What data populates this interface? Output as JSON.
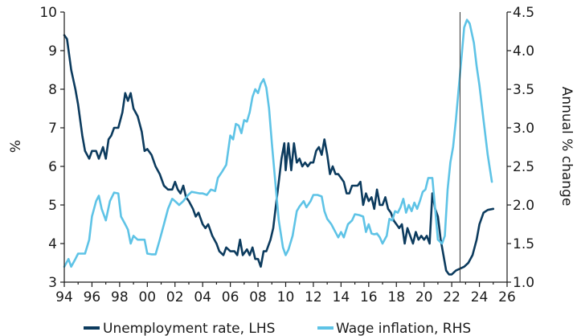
{
  "chart_data": {
    "type": "line",
    "title": "",
    "xlabel": "",
    "ylabel": "%",
    "ylabel_right": "Annual % change",
    "xlim": [
      1994,
      2026
    ],
    "ylim": [
      3,
      10
    ],
    "ylim_right": [
      1.0,
      4.5
    ],
    "x_ticks": [
      1994,
      1996,
      1998,
      2000,
      2002,
      2004,
      2006,
      2008,
      2010,
      2012,
      2014,
      2016,
      2018,
      2020,
      2022,
      2024,
      2026
    ],
    "x_tick_labels": [
      "94",
      "96",
      "98",
      "00",
      "02",
      "04",
      "06",
      "08",
      "10",
      "12",
      "14",
      "16",
      "18",
      "20",
      "22",
      "24",
      "26"
    ],
    "y_ticks": [
      3,
      4,
      5,
      6,
      7,
      8,
      9,
      10
    ],
    "y_tick_labels": [
      "3",
      "4",
      "5",
      "6",
      "7",
      "8",
      "9",
      "10"
    ],
    "y_ticks_right": [
      1.0,
      1.5,
      2.0,
      2.5,
      3.0,
      3.5,
      4.0,
      4.5
    ],
    "y_tick_labels_right": [
      "1.0",
      "1.5",
      "2.0",
      "2.5",
      "3.0",
      "3.5",
      "4.0",
      "4.5"
    ],
    "vline_x": 2022.6,
    "grid": false,
    "legend_position": "bottom",
    "series": [
      {
        "name": "Unemployment rate, LHS",
        "axis": "left",
        "color": "#0c3b5e",
        "points": [
          [
            1994.0,
            9.4
          ],
          [
            1994.2,
            9.3
          ],
          [
            1994.5,
            8.5
          ],
          [
            1994.8,
            8.0
          ],
          [
            1995.0,
            7.6
          ],
          [
            1995.3,
            6.8
          ],
          [
            1995.5,
            6.4
          ],
          [
            1995.8,
            6.2
          ],
          [
            1996.0,
            6.4
          ],
          [
            1996.3,
            6.4
          ],
          [
            1996.5,
            6.2
          ],
          [
            1996.8,
            6.5
          ],
          [
            1997.0,
            6.2
          ],
          [
            1997.2,
            6.7
          ],
          [
            1997.4,
            6.8
          ],
          [
            1997.6,
            7.0
          ],
          [
            1997.9,
            7.0
          ],
          [
            1998.2,
            7.4
          ],
          [
            1998.4,
            7.9
          ],
          [
            1998.6,
            7.7
          ],
          [
            1998.8,
            7.9
          ],
          [
            1999.0,
            7.5
          ],
          [
            1999.3,
            7.3
          ],
          [
            1999.6,
            6.9
          ],
          [
            1999.8,
            6.4
          ],
          [
            2000.0,
            6.45
          ],
          [
            2000.3,
            6.3
          ],
          [
            2000.6,
            6.0
          ],
          [
            2000.9,
            5.8
          ],
          [
            2001.2,
            5.5
          ],
          [
            2001.5,
            5.4
          ],
          [
            2001.8,
            5.4
          ],
          [
            2002.0,
            5.6
          ],
          [
            2002.2,
            5.4
          ],
          [
            2002.4,
            5.3
          ],
          [
            2002.6,
            5.5
          ],
          [
            2002.8,
            5.2
          ],
          [
            2003.0,
            5.1
          ],
          [
            2003.3,
            4.9
          ],
          [
            2003.5,
            4.7
          ],
          [
            2003.7,
            4.8
          ],
          [
            2004.0,
            4.5
          ],
          [
            2004.2,
            4.4
          ],
          [
            2004.4,
            4.5
          ],
          [
            2004.7,
            4.2
          ],
          [
            2005.0,
            4.0
          ],
          [
            2005.2,
            3.8
          ],
          [
            2005.5,
            3.7
          ],
          [
            2005.7,
            3.9
          ],
          [
            2006.0,
            3.8
          ],
          [
            2006.3,
            3.8
          ],
          [
            2006.5,
            3.7
          ],
          [
            2006.7,
            4.1
          ],
          [
            2006.9,
            3.7
          ],
          [
            2007.2,
            3.85
          ],
          [
            2007.4,
            3.7
          ],
          [
            2007.6,
            3.9
          ],
          [
            2007.8,
            3.6
          ],
          [
            2008.0,
            3.6
          ],
          [
            2008.2,
            3.4
          ],
          [
            2008.4,
            3.8
          ],
          [
            2008.6,
            3.8
          ],
          [
            2008.9,
            4.1
          ],
          [
            2009.1,
            4.4
          ],
          [
            2009.3,
            5.0
          ],
          [
            2009.5,
            5.6
          ],
          [
            2009.7,
            6.2
          ],
          [
            2009.9,
            6.6
          ],
          [
            2010.0,
            5.9
          ],
          [
            2010.2,
            6.6
          ],
          [
            2010.4,
            5.9
          ],
          [
            2010.6,
            6.6
          ],
          [
            2010.8,
            6.1
          ],
          [
            2011.0,
            6.2
          ],
          [
            2011.2,
            6.0
          ],
          [
            2011.4,
            6.1
          ],
          [
            2011.6,
            6.0
          ],
          [
            2011.8,
            6.1
          ],
          [
            2012.0,
            6.1
          ],
          [
            2012.2,
            6.4
          ],
          [
            2012.4,
            6.5
          ],
          [
            2012.6,
            6.3
          ],
          [
            2012.8,
            6.7
          ],
          [
            2013.0,
            6.3
          ],
          [
            2013.2,
            5.8
          ],
          [
            2013.4,
            6.0
          ],
          [
            2013.6,
            5.8
          ],
          [
            2013.8,
            5.8
          ],
          [
            2014.0,
            5.7
          ],
          [
            2014.2,
            5.6
          ],
          [
            2014.4,
            5.3
          ],
          [
            2014.6,
            5.3
          ],
          [
            2014.8,
            5.5
          ],
          [
            2015.0,
            5.5
          ],
          [
            2015.2,
            5.5
          ],
          [
            2015.4,
            5.6
          ],
          [
            2015.6,
            5.0
          ],
          [
            2015.8,
            5.3
          ],
          [
            2016.0,
            5.1
          ],
          [
            2016.2,
            5.2
          ],
          [
            2016.4,
            4.9
          ],
          [
            2016.6,
            5.4
          ],
          [
            2016.8,
            5.0
          ],
          [
            2017.0,
            5.0
          ],
          [
            2017.2,
            5.2
          ],
          [
            2017.4,
            4.9
          ],
          [
            2017.6,
            4.8
          ],
          [
            2017.8,
            4.6
          ],
          [
            2018.0,
            4.5
          ],
          [
            2018.2,
            4.4
          ],
          [
            2018.4,
            4.5
          ],
          [
            2018.6,
            4.0
          ],
          [
            2018.8,
            4.4
          ],
          [
            2019.0,
            4.2
          ],
          [
            2019.2,
            4.0
          ],
          [
            2019.4,
            4.3
          ],
          [
            2019.6,
            4.1
          ],
          [
            2019.8,
            4.2
          ],
          [
            2020.0,
            4.1
          ],
          [
            2020.2,
            4.2
          ],
          [
            2020.4,
            4.0
          ],
          [
            2020.6,
            5.3
          ],
          [
            2020.8,
            4.9
          ],
          [
            2021.0,
            4.7
          ],
          [
            2021.2,
            4.1
          ],
          [
            2021.4,
            3.7
          ],
          [
            2021.6,
            3.3
          ],
          [
            2021.8,
            3.2
          ],
          [
            2022.0,
            3.2
          ],
          [
            2022.3,
            3.3
          ],
          [
            2022.6,
            3.35
          ],
          [
            2022.9,
            3.4
          ],
          [
            2023.2,
            3.5
          ],
          [
            2023.5,
            3.7
          ],
          [
            2023.8,
            4.1
          ],
          [
            2024.0,
            4.5
          ],
          [
            2024.3,
            4.8
          ],
          [
            2024.6,
            4.87
          ],
          [
            2025.0,
            4.9
          ]
        ]
      },
      {
        "name": "Wage inflation, RHS",
        "axis": "right",
        "color": "#5ec3e6",
        "points": [
          [
            1994.0,
            1.2
          ],
          [
            1994.3,
            1.3
          ],
          [
            1994.5,
            1.2
          ],
          [
            1994.8,
            1.3
          ],
          [
            1995.0,
            1.37
          ],
          [
            1995.3,
            1.37
          ],
          [
            1995.5,
            1.37
          ],
          [
            1995.8,
            1.55
          ],
          [
            1996.0,
            1.85
          ],
          [
            1996.3,
            2.05
          ],
          [
            1996.5,
            2.12
          ],
          [
            1996.7,
            1.95
          ],
          [
            1997.0,
            1.8
          ],
          [
            1997.3,
            2.05
          ],
          [
            1997.6,
            2.16
          ],
          [
            1997.9,
            2.15
          ],
          [
            1998.1,
            1.85
          ],
          [
            1998.4,
            1.75
          ],
          [
            1998.6,
            1.68
          ],
          [
            1998.8,
            1.5
          ],
          [
            1999.0,
            1.6
          ],
          [
            1999.3,
            1.55
          ],
          [
            1999.6,
            1.55
          ],
          [
            1999.8,
            1.55
          ],
          [
            2000.0,
            1.37
          ],
          [
            2000.3,
            1.36
          ],
          [
            2000.6,
            1.36
          ],
          [
            2000.9,
            1.55
          ],
          [
            2001.2,
            1.75
          ],
          [
            2001.5,
            1.95
          ],
          [
            2001.8,
            2.08
          ],
          [
            2002.0,
            2.05
          ],
          [
            2002.3,
            2.0
          ],
          [
            2002.6,
            2.05
          ],
          [
            2002.9,
            2.12
          ],
          [
            2003.2,
            2.17
          ],
          [
            2003.5,
            2.16
          ],
          [
            2003.8,
            2.15
          ],
          [
            2004.0,
            2.15
          ],
          [
            2004.3,
            2.13
          ],
          [
            2004.6,
            2.2
          ],
          [
            2004.9,
            2.18
          ],
          [
            2005.1,
            2.35
          ],
          [
            2005.4,
            2.43
          ],
          [
            2005.7,
            2.52
          ],
          [
            2006.0,
            2.9
          ],
          [
            2006.2,
            2.85
          ],
          [
            2006.4,
            3.05
          ],
          [
            2006.6,
            3.03
          ],
          [
            2006.8,
            2.93
          ],
          [
            2007.0,
            3.1
          ],
          [
            2007.2,
            3.08
          ],
          [
            2007.4,
            3.2
          ],
          [
            2007.6,
            3.4
          ],
          [
            2007.8,
            3.5
          ],
          [
            2008.0,
            3.45
          ],
          [
            2008.2,
            3.57
          ],
          [
            2008.4,
            3.63
          ],
          [
            2008.6,
            3.52
          ],
          [
            2008.8,
            3.25
          ],
          [
            2009.0,
            2.8
          ],
          [
            2009.3,
            2.2
          ],
          [
            2009.5,
            1.8
          ],
          [
            2009.8,
            1.45
          ],
          [
            2010.0,
            1.35
          ],
          [
            2010.2,
            1.42
          ],
          [
            2010.5,
            1.6
          ],
          [
            2010.8,
            1.92
          ],
          [
            2011.0,
            1.98
          ],
          [
            2011.3,
            2.05
          ],
          [
            2011.5,
            1.97
          ],
          [
            2011.8,
            2.05
          ],
          [
            2012.0,
            2.13
          ],
          [
            2012.3,
            2.13
          ],
          [
            2012.6,
            2.11
          ],
          [
            2012.8,
            1.92
          ],
          [
            2013.0,
            1.82
          ],
          [
            2013.3,
            1.75
          ],
          [
            2013.5,
            1.68
          ],
          [
            2013.8,
            1.58
          ],
          [
            2014.0,
            1.65
          ],
          [
            2014.2,
            1.58
          ],
          [
            2014.5,
            1.75
          ],
          [
            2014.8,
            1.8
          ],
          [
            2015.0,
            1.88
          ],
          [
            2015.3,
            1.87
          ],
          [
            2015.6,
            1.85
          ],
          [
            2015.8,
            1.65
          ],
          [
            2016.0,
            1.75
          ],
          [
            2016.2,
            1.63
          ],
          [
            2016.4,
            1.62
          ],
          [
            2016.6,
            1.63
          ],
          [
            2016.8,
            1.58
          ],
          [
            2017.0,
            1.5
          ],
          [
            2017.3,
            1.6
          ],
          [
            2017.5,
            1.82
          ],
          [
            2017.7,
            1.8
          ],
          [
            2017.9,
            1.92
          ],
          [
            2018.1,
            1.9
          ],
          [
            2018.3,
            1.97
          ],
          [
            2018.5,
            2.08
          ],
          [
            2018.7,
            1.9
          ],
          [
            2018.9,
            2.0
          ],
          [
            2019.1,
            1.92
          ],
          [
            2019.3,
            2.03
          ],
          [
            2019.5,
            1.95
          ],
          [
            2019.7,
            2.05
          ],
          [
            2019.9,
            2.17
          ],
          [
            2020.1,
            2.2
          ],
          [
            2020.3,
            2.35
          ],
          [
            2020.6,
            2.35
          ],
          [
            2020.8,
            1.95
          ],
          [
            2021.0,
            1.55
          ],
          [
            2021.3,
            1.5
          ],
          [
            2021.5,
            1.6
          ],
          [
            2021.7,
            2.2
          ],
          [
            2021.9,
            2.55
          ],
          [
            2022.1,
            2.75
          ],
          [
            2022.3,
            3.1
          ],
          [
            2022.5,
            3.5
          ],
          [
            2022.7,
            3.9
          ],
          [
            2022.9,
            4.3
          ],
          [
            2023.1,
            4.4
          ],
          [
            2023.3,
            4.35
          ],
          [
            2023.6,
            4.1
          ],
          [
            2023.8,
            3.8
          ],
          [
            2024.0,
            3.55
          ],
          [
            2024.3,
            3.1
          ],
          [
            2024.6,
            2.65
          ],
          [
            2024.9,
            2.3
          ]
        ]
      }
    ]
  }
}
